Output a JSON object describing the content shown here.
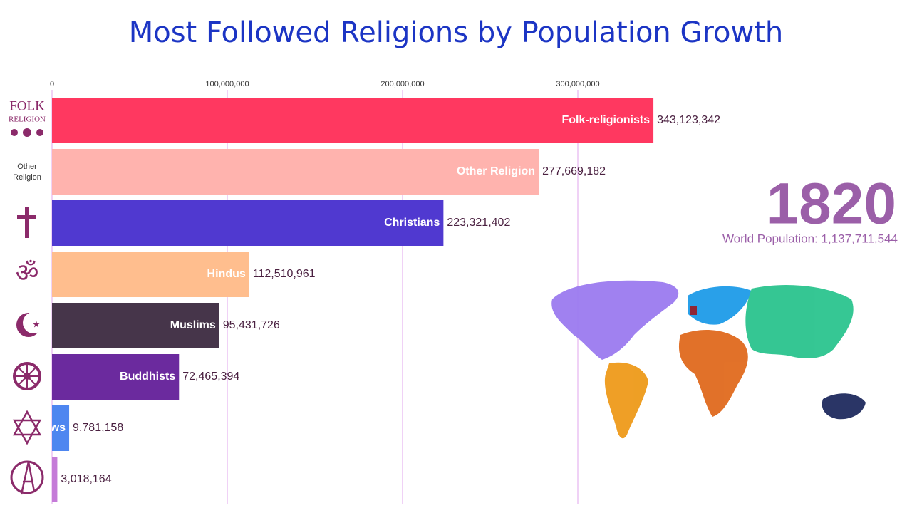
{
  "chart_data": {
    "type": "bar",
    "orientation": "horizontal",
    "title": "Most Followed Religions by Population Growth",
    "categories": [
      "Folk-religionists",
      "Other Religion",
      "Christians",
      "Hindus",
      "Muslims",
      "Buddhists",
      "Jews",
      null
    ],
    "values": [
      343123342,
      277669182,
      223321402,
      112510961,
      95431726,
      72465394,
      9781158,
      3018164
    ],
    "value_labels": [
      "343,123,342",
      "277,669,182",
      "223,321,402",
      "112,510,961",
      "95,431,726",
      "72,465,394",
      "9,781,158",
      "3,018,164"
    ],
    "colors": [
      "#ff3860",
      "#ffb3ae",
      "#5039d0",
      "#ffbe8e",
      "#46354a",
      "#6b2a9e",
      "#4e86f0",
      "#c57bd8"
    ],
    "xlim": [
      0,
      350000000
    ],
    "xticks": [
      0,
      {
        "value": 100000000,
        "label": "100,000,000"
      },
      {
        "value": 200000000,
        "label": "200,000,000"
      },
      {
        "value": 300000000,
        "label": "300,000,000"
      }
    ],
    "grid": true,
    "year": "1820",
    "world_population": "World Population: 1,137,711,544",
    "icon_labels": {
      "folk": [
        "FOLK",
        "RELIGION"
      ],
      "other": [
        "Other",
        "Religion"
      ]
    }
  }
}
